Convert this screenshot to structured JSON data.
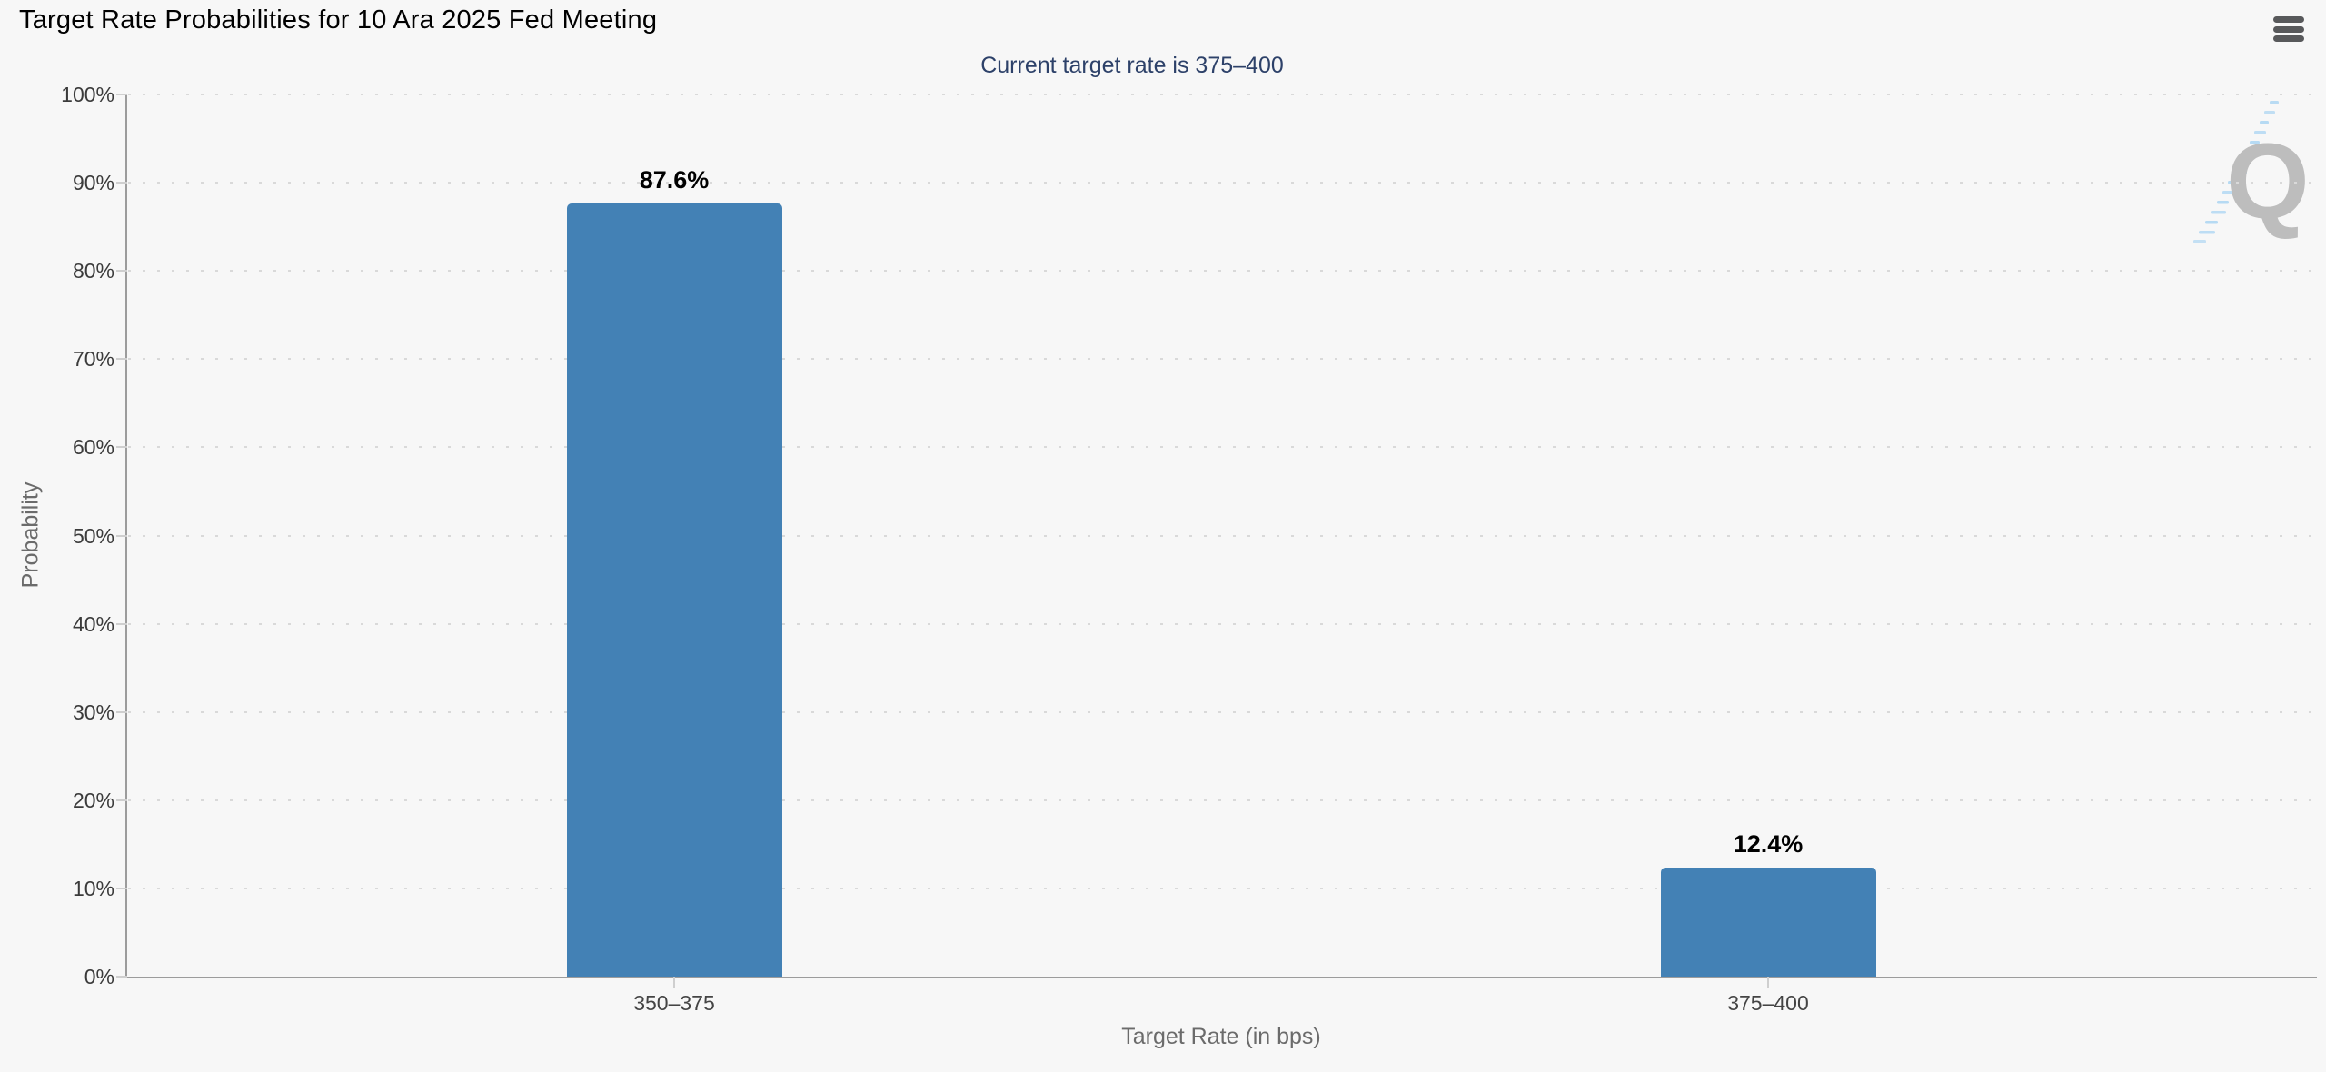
{
  "header": {
    "title": "Target Rate Probabilities for 10 Ara 2025 Fed Meeting"
  },
  "icons": {
    "menu": "hamburger-menu-icon",
    "watermark": "quikstrike-q-logo"
  },
  "watermark": {
    "letter": "Q",
    "letter_color": "#bdbdbd",
    "swoosh_color": "#aed6f2"
  },
  "chart_data": {
    "type": "bar",
    "title": "Target Rate Probabilities for 10 Ara 2025 Fed Meeting",
    "subtitle": "Current target rate is 375–400",
    "categories": [
      "350–375",
      "375–400"
    ],
    "values": [
      87.6,
      12.4
    ],
    "value_labels": [
      "87.6%",
      "12.4%"
    ],
    "xlabel": "Target Rate (in bps)",
    "ylabel": "Probability",
    "ylim": [
      0,
      100
    ],
    "ytick_step": 10,
    "ytick_suffix": "%",
    "grid": "dotted horizontal lines, on",
    "legend": "none",
    "bar_color": "#4381b5",
    "subtitle_color": "#2d4169",
    "axis_line_color": "#9c9c9c"
  }
}
